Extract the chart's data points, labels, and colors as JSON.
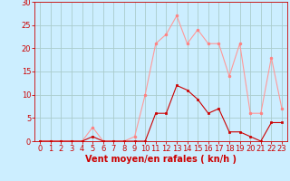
{
  "x": [
    0,
    1,
    2,
    3,
    4,
    5,
    6,
    7,
    8,
    9,
    10,
    11,
    12,
    13,
    14,
    15,
    16,
    17,
    18,
    19,
    20,
    21,
    22,
    23
  ],
  "rafales": [
    0,
    0,
    0,
    0,
    0,
    3,
    0,
    0,
    0,
    1,
    10,
    21,
    23,
    27,
    21,
    24,
    21,
    21,
    14,
    21,
    6,
    6,
    18,
    7
  ],
  "moyen": [
    0,
    0,
    0,
    0,
    0,
    1,
    0,
    0,
    0,
    0,
    0,
    6,
    6,
    12,
    11,
    9,
    6,
    7,
    2,
    2,
    1,
    0,
    4,
    4
  ],
  "bg_color": "#cceeff",
  "grid_color": "#aacccc",
  "line_color_rafales": "#ff9999",
  "line_color_moyen": "#cc0000",
  "marker_color_rafales": "#ff8080",
  "marker_color_moyen": "#cc0000",
  "xlabel": "Vent moyen/en rafales ( kn/h )",
  "ylim": [
    0,
    30
  ],
  "xlim": [
    -0.5,
    23.5
  ],
  "yticks": [
    0,
    5,
    10,
    15,
    20,
    25,
    30
  ],
  "xticks": [
    0,
    1,
    2,
    3,
    4,
    5,
    6,
    7,
    8,
    9,
    10,
    11,
    12,
    13,
    14,
    15,
    16,
    17,
    18,
    19,
    20,
    21,
    22,
    23
  ],
  "axis_color": "#cc0000",
  "tick_color": "#cc0000",
  "xlabel_color": "#cc0000",
  "xlabel_fontsize": 7,
  "tick_fontsize": 6,
  "linewidth": 0.8,
  "markersize": 2.0
}
